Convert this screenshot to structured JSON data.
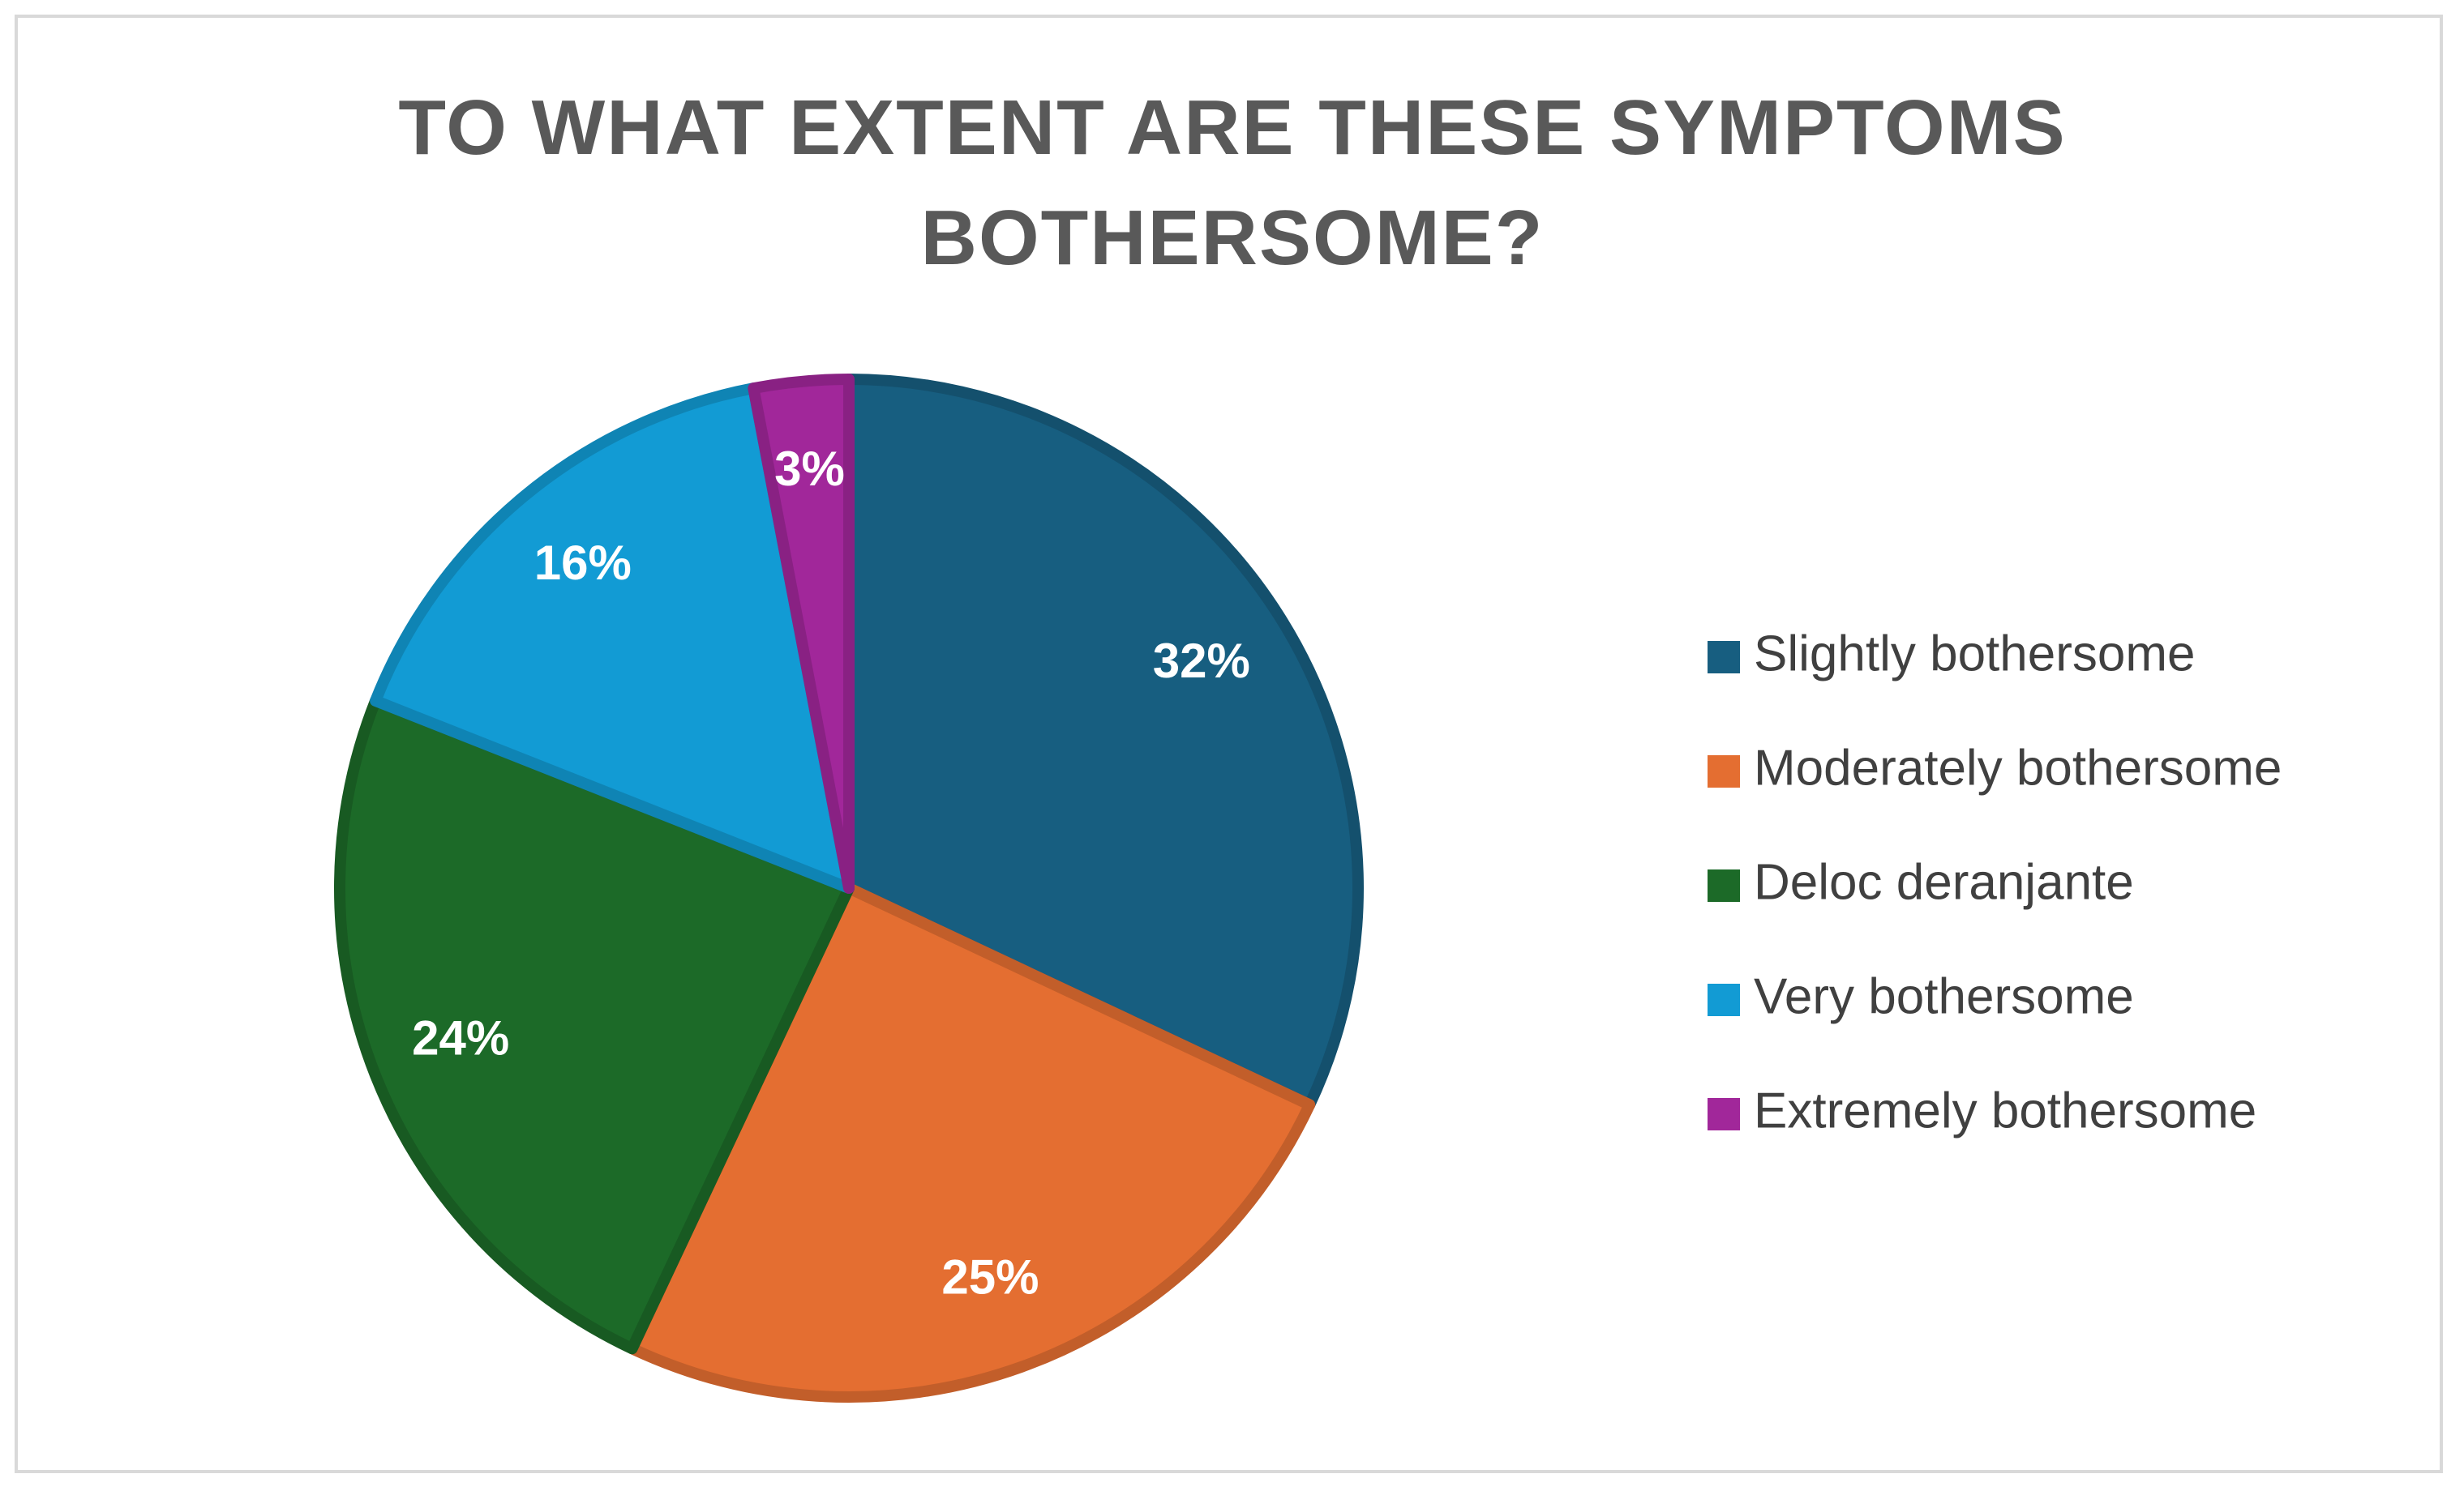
{
  "chart_data": {
    "type": "pie",
    "title": "TO WHAT EXTENT ARE THESE SYMPTOMS BOTHERSOME?",
    "categories": [
      "Slightly bothersome",
      "Moderately bothersome",
      "Deloc deranjante",
      "Very bothersome",
      "Extremely bothersome"
    ],
    "values": [
      32,
      25,
      24,
      16,
      3
    ],
    "value_labels": [
      "32%",
      "25%",
      "24%",
      "16%",
      "3%"
    ],
    "colors": [
      "#175e80",
      "#e46e31",
      "#1c6a28",
      "#129bd4",
      "#a1279a"
    ],
    "legend": "right"
  }
}
